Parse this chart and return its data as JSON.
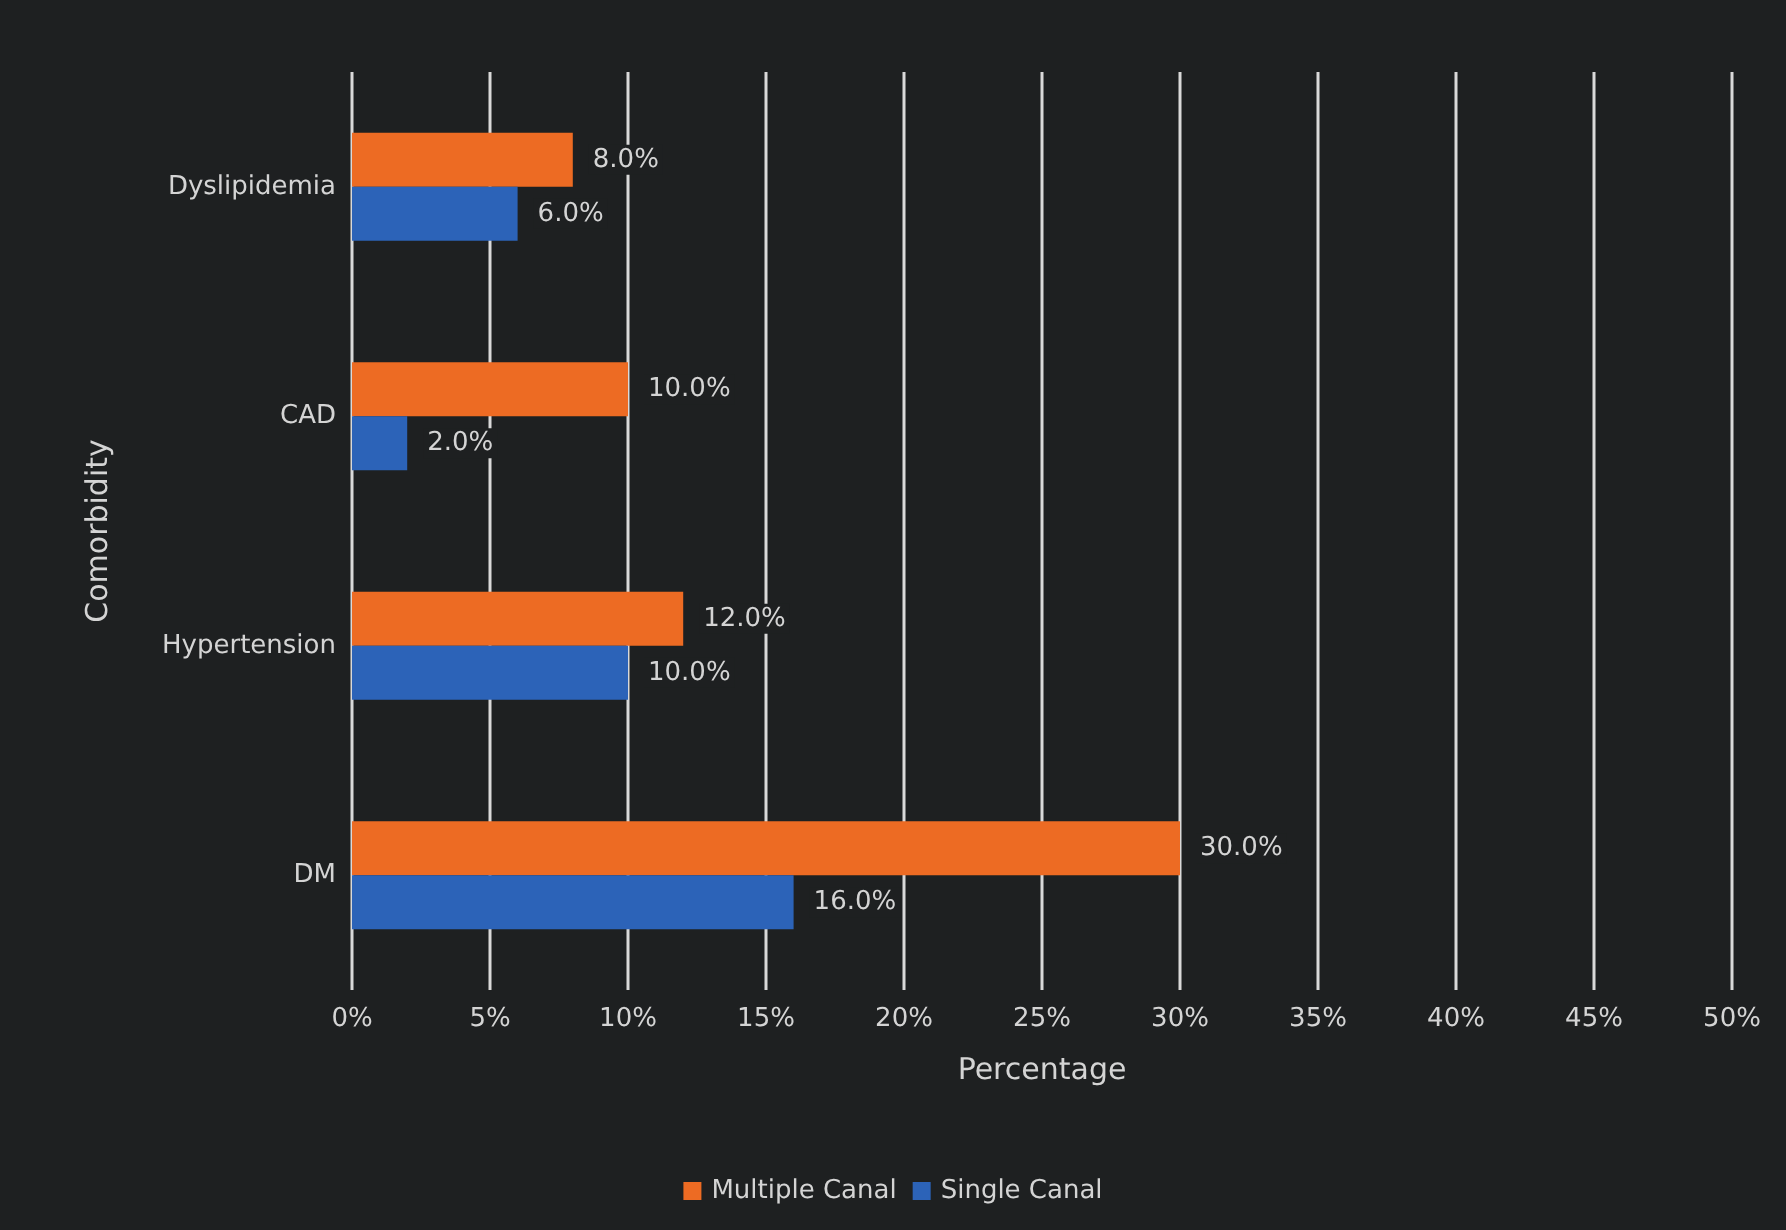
{
  "chart_data": {
    "type": "bar",
    "orientation": "horizontal",
    "xlabel": "Percentage",
    "ylabel": "Comorbidity",
    "categories": [
      "Dyslipidemia",
      "CAD",
      "Hypertension",
      "DM"
    ],
    "series": [
      {
        "name": "Multiple Canal",
        "color": "#ed6b23",
        "values": [
          8,
          10,
          12,
          30
        ],
        "value_labels": [
          "8.0%",
          "10.0%",
          "12.0%",
          "30.0%"
        ]
      },
      {
        "name": "Single Canal",
        "color": "#2c63b8",
        "values": [
          6,
          2,
          10,
          16
        ],
        "value_labels": [
          "6.0%",
          "2.0%",
          "10.0%",
          "16.0%"
        ]
      }
    ],
    "xlim": [
      0,
      50
    ],
    "xticks": [
      {
        "value": 0,
        "label": "0%"
      },
      {
        "value": 5,
        "label": "5%"
      },
      {
        "value": 10,
        "label": "10%"
      },
      {
        "value": 15,
        "label": "15%"
      },
      {
        "value": 20,
        "label": "20%"
      },
      {
        "value": 25,
        "label": "25%"
      },
      {
        "value": 30,
        "label": "30%"
      },
      {
        "value": 35,
        "label": "35%"
      },
      {
        "value": 40,
        "label": "40%"
      },
      {
        "value": 45,
        "label": "45%"
      },
      {
        "value": 50,
        "label": "50%"
      }
    ],
    "grid": "x",
    "legend": "bottom"
  }
}
